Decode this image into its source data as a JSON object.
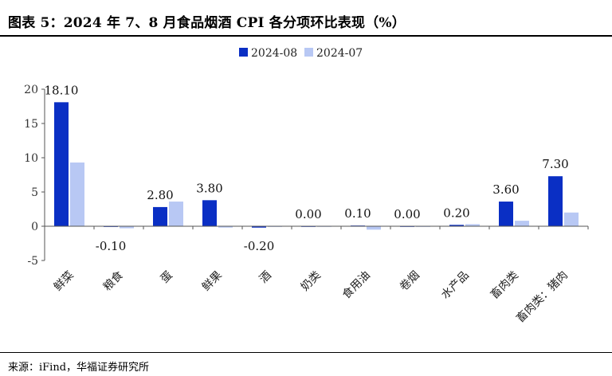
{
  "title": "图表 5：2024 年 7、8 月食品烟酒 CPI 各分项环比表现（%）",
  "source": "来源：iFind，华福证券研究所",
  "colors": {
    "series_2024_08": "#0a2fc4",
    "series_2024_07": "#b8c8f4",
    "axis": "#555555"
  },
  "chart_data": {
    "type": "bar",
    "categories": [
      "鲜菜",
      "粮食",
      "蛋",
      "鲜果",
      "酒",
      "奶类",
      "食用油",
      "卷烟",
      "水产品",
      "畜肉类",
      "畜肉类：猪肉"
    ],
    "series": [
      {
        "name": "2024-08",
        "values": [
          18.1,
          -0.1,
          2.8,
          3.8,
          -0.2,
          0.0,
          0.1,
          0.0,
          0.2,
          3.6,
          7.3
        ],
        "labels": [
          "18.10",
          "-0.10",
          "2.80",
          "3.80",
          "-0.20",
          "0.00",
          "0.10",
          "0.00",
          "0.20",
          "3.60",
          "7.30"
        ]
      },
      {
        "name": "2024-07",
        "values": [
          9.3,
          -0.3,
          3.6,
          -0.2,
          -0.1,
          0.0,
          -0.5,
          -0.1,
          0.3,
          0.8,
          2.0
        ]
      }
    ],
    "y_ticks": [
      "20",
      "15",
      "10",
      "5",
      "0",
      "-5"
    ],
    "y_tick_values": [
      20,
      15,
      10,
      5,
      0,
      -5
    ],
    "ylim": [
      -5,
      20
    ],
    "legend_position": "top-center",
    "grid": false
  }
}
